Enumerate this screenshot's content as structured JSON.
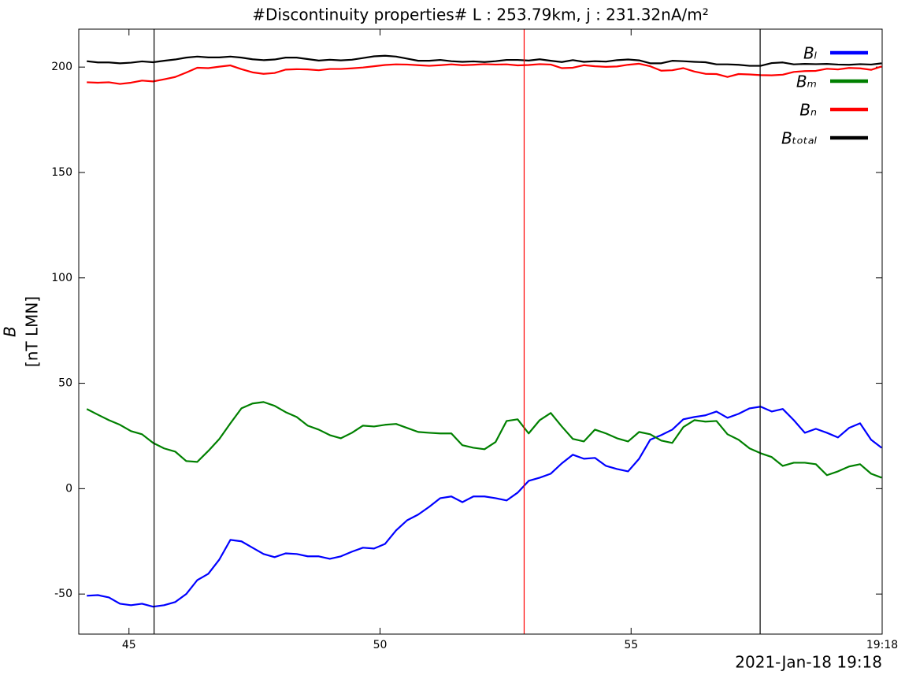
{
  "chart_data": {
    "type": "line",
    "title": "#Discontinuity properties# L : 253.79km, j : 231.32nA/m²",
    "ylabel": [
      "B",
      "[nT LMN]"
    ],
    "xlabel": "2021-Jan-18 19:18",
    "x": [
      44.16,
      44.38,
      44.6,
      44.82,
      45.04,
      45.26,
      45.48,
      45.7,
      45.92,
      46.14,
      46.36,
      46.58,
      46.8,
      47.02,
      47.24,
      47.46,
      47.68,
      47.9,
      48.12,
      48.34,
      48.56,
      48.78,
      49.0,
      49.22,
      49.44,
      49.66,
      49.88,
      50.1,
      50.32,
      50.54,
      50.76,
      50.98,
      51.2,
      51.42,
      51.64,
      51.86,
      52.08,
      52.3,
      52.52,
      52.74,
      52.96,
      53.18,
      53.4,
      53.62,
      53.84,
      54.06,
      54.28,
      54.5,
      54.72,
      54.94,
      55.16,
      55.38,
      55.6,
      55.82,
      56.04,
      56.26,
      56.48,
      56.7,
      56.92,
      57.14,
      57.36,
      57.58,
      57.8,
      58.02,
      58.24,
      58.46,
      58.68,
      58.9,
      59.12,
      59.34,
      59.56,
      59.78,
      59.99
    ],
    "series": [
      {
        "name": "Bₗ",
        "color": "#0000ff",
        "values": [
          -50.8,
          -50.5,
          -51.6,
          -54.6,
          -55.3,
          -54.6,
          -56,
          -55.3,
          -53.8,
          -50,
          -43.4,
          -40.4,
          -33.6,
          -24.3,
          -25,
          -28,
          -31,
          -32.5,
          -30.7,
          -31,
          -32.1,
          -32.1,
          -33.3,
          -32.1,
          -29.9,
          -28,
          -28.4,
          -26.2,
          -19.8,
          -15,
          -12.3,
          -8.6,
          -4.5,
          -3.7,
          -6.4,
          -3.7,
          -3.7,
          -4.5,
          -5.6,
          -1.9,
          3.7,
          5.2,
          7.1,
          12,
          16.1,
          14.2,
          14.6,
          10.8,
          9.3,
          8.2,
          14.2,
          23.2,
          25.4,
          28,
          32.9,
          34,
          34.8,
          36.6,
          33.6,
          35.5,
          38.1,
          38.9,
          36.6,
          37.8,
          32.5,
          26.5,
          28.4,
          26.5,
          24.3,
          28.8,
          31,
          23.2,
          19.4
        ]
      },
      {
        "name": "Bₘ",
        "color": "#008000",
        "values": [
          37.8,
          35.1,
          32.5,
          30.3,
          27.3,
          25.8,
          21.7,
          19.1,
          17.6,
          13.1,
          12.7,
          17.9,
          23.6,
          31,
          38.1,
          40.4,
          41.1,
          39.3,
          36.3,
          34,
          29.9,
          28,
          25.4,
          23.9,
          26.5,
          29.9,
          29.5,
          30.3,
          30.7,
          28.8,
          26.9,
          26.5,
          26.2,
          26.2,
          20.6,
          19.4,
          18.7,
          22.1,
          32.1,
          32.9,
          26.2,
          32.5,
          35.9,
          29.5,
          23.6,
          22.4,
          28,
          26.2,
          23.9,
          22.4,
          26.9,
          25.8,
          22.8,
          21.7,
          29.2,
          32.5,
          31.8,
          32.1,
          25.8,
          23.2,
          19.1,
          16.8,
          15,
          10.8,
          12.3,
          12.3,
          11.6,
          6.4,
          8.2,
          10.5,
          11.6,
          7.1,
          5.2
        ]
      },
      {
        "name": "Bₙ",
        "color": "#ff0000",
        "values": [
          192.8,
          192.6,
          192.8,
          192,
          192.6,
          193.6,
          193.2,
          194.2,
          195.3,
          197.4,
          199.7,
          199.5,
          200.2,
          200.8,
          199,
          197.5,
          196.8,
          197.2,
          198.8,
          199,
          198.9,
          198.5,
          199.1,
          199.1,
          199.4,
          199.8,
          200.4,
          201,
          201.3,
          201.2,
          200.9,
          200.6,
          200.9,
          201.3,
          200.9,
          201.1,
          201.4,
          201.2,
          201.3,
          200.8,
          201,
          201.4,
          201.2,
          199.5,
          199.7,
          200.9,
          200.4,
          200.1,
          200.3,
          201.1,
          201.6,
          200.4,
          198.3,
          198.5,
          199.5,
          197.9,
          196.8,
          196.7,
          195.3,
          196.7,
          196.5,
          196.2,
          196.1,
          196.4,
          197.7,
          198.1,
          198.2,
          199.2,
          198.9,
          199.6,
          199.4,
          198.7,
          200.3
        ]
      },
      {
        "name": "Bₜₒₜₐₗ",
        "color": "#000000",
        "values": [
          202.8,
          202.2,
          202.2,
          201.8,
          202.1,
          202.7,
          202.3,
          203,
          203.6,
          204.5,
          205,
          204.6,
          204.6,
          205,
          204.5,
          203.7,
          203.3,
          203.6,
          204.5,
          204.5,
          203.8,
          203.1,
          203.5,
          203.2,
          203.5,
          204.3,
          205.1,
          205.4,
          205,
          204,
          203,
          203,
          203.4,
          202.8,
          202.5,
          202.7,
          202.4,
          202.8,
          203.4,
          203.4,
          203.1,
          203.7,
          203,
          202.4,
          203.3,
          202.5,
          202.8,
          202.6,
          203.3,
          203.6,
          203.2,
          201.8,
          201.8,
          203,
          202.8,
          202.5,
          202.3,
          201.3,
          201.3,
          201.1,
          200.6,
          200.6,
          201.9,
          202.2,
          201.3,
          201.5,
          201.4,
          201.5,
          201.2,
          201.1,
          201.4,
          201.2,
          201.8
        ]
      }
    ],
    "vlines": [
      {
        "x": 45.5,
        "color": "#000000"
      },
      {
        "x": 52.87,
        "color": "#ff0000"
      },
      {
        "x": 57.57,
        "color": "#000000"
      }
    ],
    "xlim": [
      44,
      60
    ],
    "xticks": [
      45,
      50,
      55,
      {
        "value": 60,
        "label": "19:18"
      }
    ],
    "ylim": [
      -69,
      218
    ],
    "yticks": [
      -50,
      0,
      50,
      100,
      150,
      200
    ],
    "legend": "upper right"
  }
}
